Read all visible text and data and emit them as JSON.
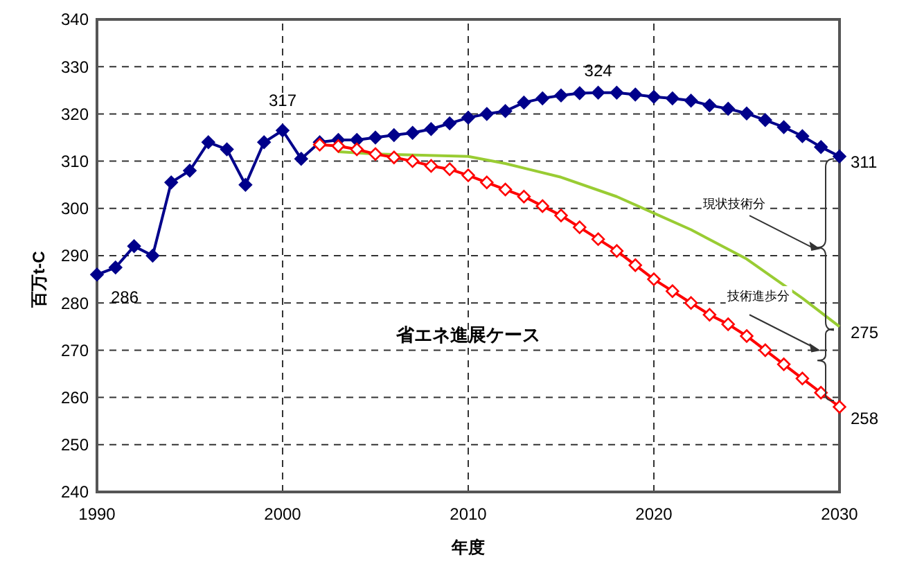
{
  "chart_data": {
    "type": "line",
    "xlabel": "年度",
    "ylabel": "百万t-C",
    "xlim": [
      1990,
      2030
    ],
    "xticks": [
      1990,
      2000,
      2010,
      2020,
      2030
    ],
    "ylim": [
      240,
      340
    ],
    "yticks": [
      240,
      250,
      260,
      270,
      280,
      290,
      300,
      310,
      320,
      330,
      340
    ],
    "grid": true,
    "series": [
      {
        "color": "#00008b",
        "marker": "diamond",
        "x": [
          1990,
          1991,
          1992,
          1993,
          1994,
          1995,
          1996,
          1997,
          1998,
          1999,
          2000,
          2001,
          2002,
          2003,
          2004,
          2005,
          2006,
          2007,
          2008,
          2009,
          2010,
          2011,
          2012,
          2013,
          2014,
          2015,
          2016,
          2017,
          2018,
          2019,
          2020,
          2021,
          2022,
          2023,
          2024,
          2025,
          2026,
          2027,
          2028,
          2029,
          2030
        ],
        "values": [
          286,
          287.5,
          292,
          290,
          305.5,
          308,
          314,
          312.5,
          305,
          314,
          316.5,
          310.5,
          314,
          314.5,
          314.5,
          315,
          315.5,
          316,
          316.8,
          318,
          319.2,
          320,
          320.6,
          322.4,
          323.3,
          323.9,
          324.4,
          324.5,
          324.5,
          324.1,
          323.6,
          323.3,
          322.8,
          321.8,
          321.1,
          320.1,
          318.7,
          317.2,
          315.3,
          313,
          311
        ]
      },
      {
        "color": "#99cc33",
        "marker": "none",
        "x": [
          2003,
          2005,
          2010,
          2012,
          2015,
          2018,
          2020,
          2022,
          2025,
          2028,
          2030
        ],
        "values": [
          312,
          311.5,
          311,
          309.5,
          306.6,
          302.5,
          299,
          295.5,
          289.3,
          281,
          275
        ]
      },
      {
        "name": "省エネ進展ケース",
        "color": "#ff0000",
        "marker": "diamond",
        "x": [
          2002,
          2003,
          2004,
          2005,
          2006,
          2007,
          2008,
          2009,
          2010,
          2011,
          2012,
          2013,
          2014,
          2015,
          2016,
          2017,
          2018,
          2019,
          2020,
          2021,
          2022,
          2023,
          2024,
          2025,
          2026,
          2027,
          2028,
          2029,
          2030
        ],
        "values": [
          313.5,
          313.2,
          312.5,
          311.5,
          310.8,
          310,
          309,
          308.3,
          307,
          305.5,
          304,
          302.5,
          300.5,
          298.5,
          296,
          293.5,
          291,
          288,
          285,
          282.5,
          280,
          277.5,
          275.5,
          273,
          270,
          267,
          264,
          261,
          258
        ]
      }
    ],
    "annotations": [
      {
        "text": "286",
        "x": 1990,
        "y": 286
      },
      {
        "text": "317",
        "x": 2000,
        "y": 316.5
      },
      {
        "text": "324",
        "x": 2017,
        "y": 324.5
      },
      {
        "text": "311",
        "x": 2030,
        "y": 311
      },
      {
        "text": "275",
        "x": 2030,
        "y": 275
      },
      {
        "text": "258",
        "x": 2030,
        "y": 258
      },
      "現状技術分",
      "技術進歩分"
    ]
  }
}
